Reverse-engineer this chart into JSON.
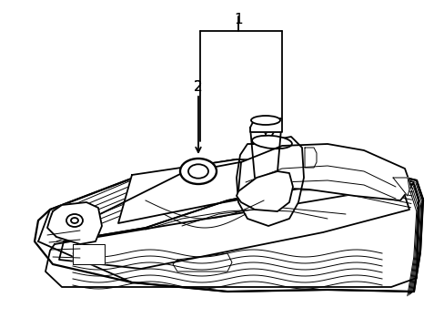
{
  "background_color": "#ffffff",
  "line_color": "#000000",
  "lw_main": 1.3,
  "lw_thin": 0.7,
  "lw_thick": 1.8,
  "fig_w": 4.89,
  "fig_h": 3.6,
  "dpi": 100,
  "label1": "1",
  "label2": "2",
  "xlim": [
    0,
    489
  ],
  "ylim": [
    0,
    360
  ]
}
